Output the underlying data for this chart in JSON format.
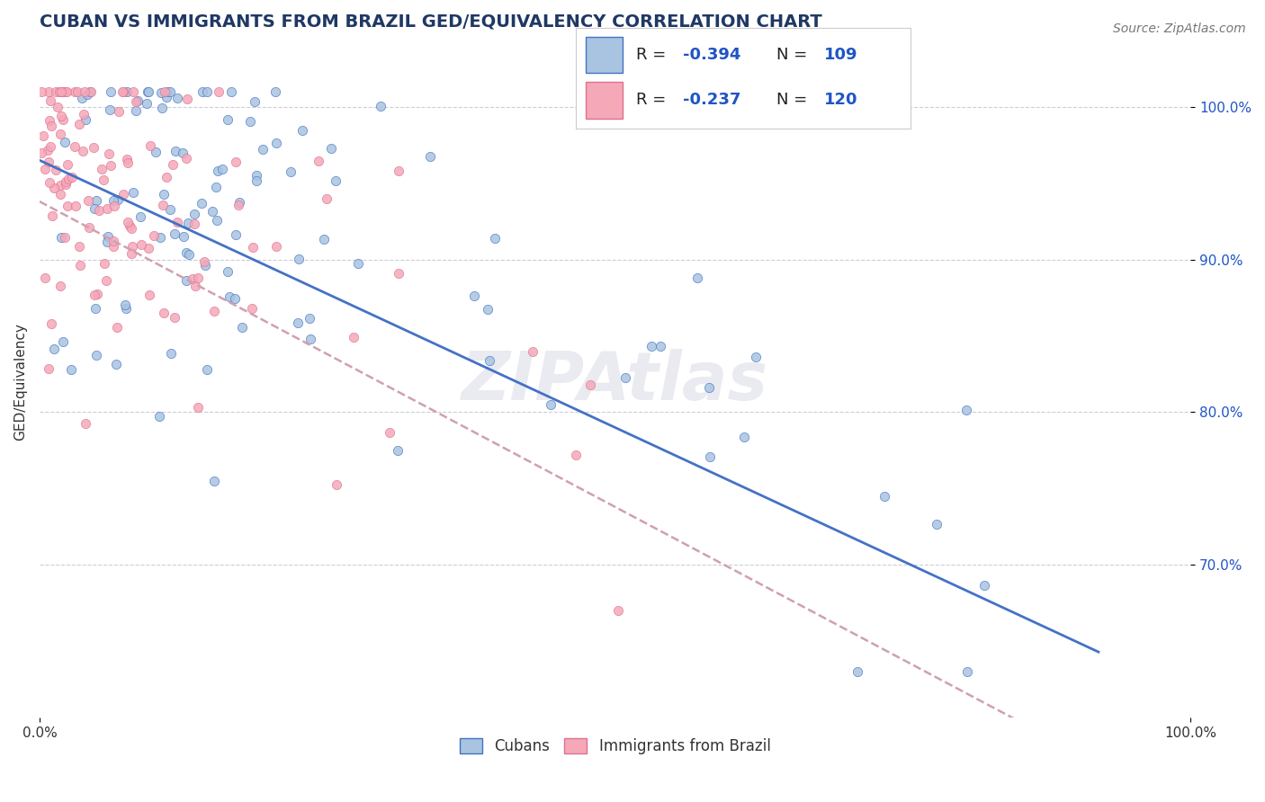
{
  "title": "CUBAN VS IMMIGRANTS FROM BRAZIL GED/EQUIVALENCY CORRELATION CHART",
  "source": "Source: ZipAtlas.com",
  "ylabel": "GED/Equivalency",
  "y_ticks": [
    "70.0%",
    "80.0%",
    "90.0%",
    "100.0%"
  ],
  "y_tick_vals": [
    0.7,
    0.8,
    0.9,
    1.0
  ],
  "x_range": [
    0.0,
    1.0
  ],
  "y_range": [
    0.6,
    1.04
  ],
  "legend_r1": "-0.394",
  "legend_n1": "109",
  "legend_r2": "-0.237",
  "legend_n2": "120",
  "r1": -0.394,
  "n1": 109,
  "r2": -0.237,
  "n2": 120,
  "color_blue": "#a8c4e0",
  "color_pink": "#f4a8b8",
  "color_blue_line": "#4472c4",
  "color_pink_line": "#e07090",
  "color_pink_dash": "#d0a0b0",
  "color_title": "#1f3864",
  "color_legend_text": "#1f55c4",
  "watermark": "ZIPAtlas",
  "bg_color": "#ffffff",
  "grid_color": "#c8c8d8",
  "seed_blue": 42,
  "seed_pink": 99,
  "title_fontsize": 14,
  "axis_label_fontsize": 11,
  "legend_fontsize": 13,
  "tick_fontsize": 11
}
